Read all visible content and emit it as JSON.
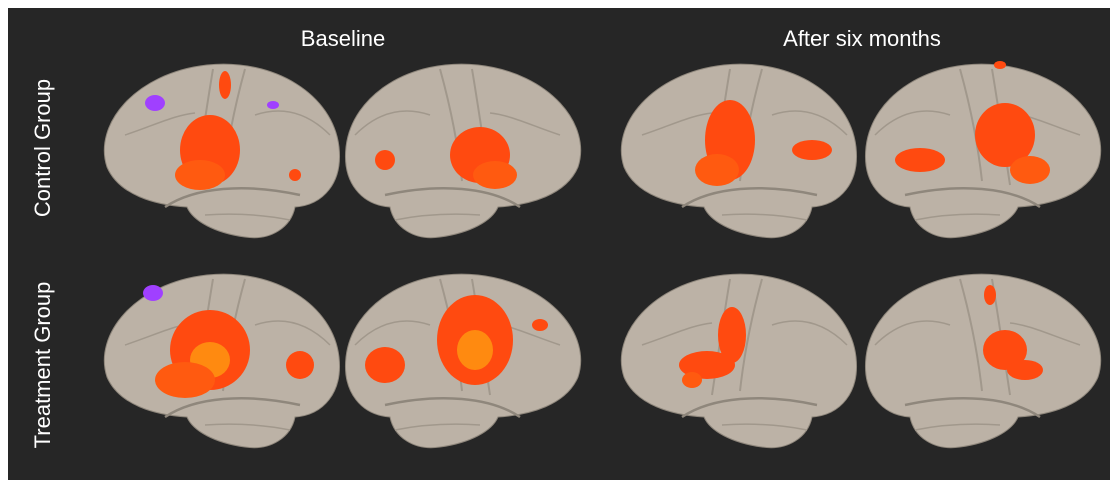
{
  "column_headers": [
    "Baseline",
    "After six months"
  ],
  "row_labels": [
    "Control Group",
    "Treatment Group"
  ]
}
